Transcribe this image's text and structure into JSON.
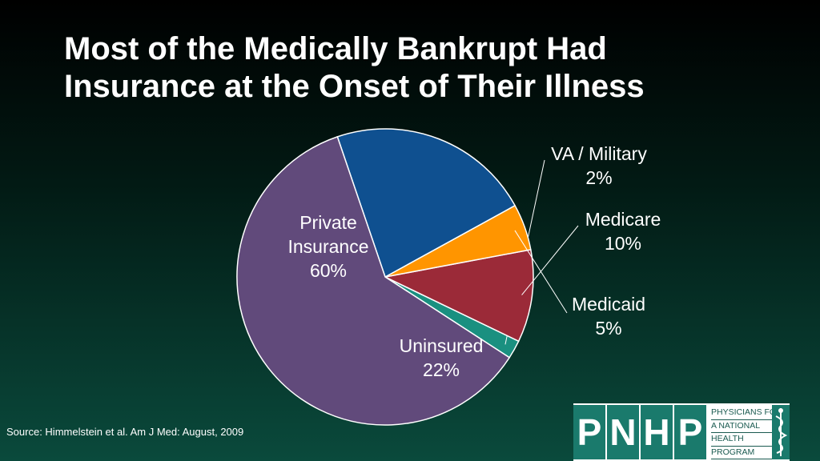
{
  "title": {
    "line1": "Most of the Medically Bankrupt Had",
    "line2": "Insurance at the Onset of Their Illness"
  },
  "chart_data": {
    "type": "pie",
    "title": "Most of the Medically Bankrupt Had Insurance at the Onset of Their Illness",
    "slices": [
      {
        "name": "VA / Military",
        "value": 2,
        "label_lines": [
          "VA / Military",
          "2%"
        ],
        "color": "#1a9080",
        "label_inside": false
      },
      {
        "name": "Medicare",
        "value": 10,
        "label_lines": [
          "Medicare",
          "10%"
        ],
        "color": "#9b2a38",
        "label_inside": false
      },
      {
        "name": "Medicaid",
        "value": 5,
        "label_lines": [
          "Medicaid",
          "5%"
        ],
        "color": "#ff9500",
        "label_inside": false
      },
      {
        "name": "Uninsured",
        "value": 22,
        "label_lines": [
          "Uninsured",
          "22%"
        ],
        "color": "#0f5090",
        "label_inside": true
      },
      {
        "name": "Private Insurance",
        "value": 60,
        "label_lines": [
          "Private",
          "Insurance",
          "60%"
        ],
        "color": "#614a7b",
        "label_inside": true
      }
    ]
  },
  "source": "Source: Himmelstein et al. Am J Med: August, 2009",
  "logo": {
    "letters": [
      "P",
      "N",
      "H",
      "P"
    ],
    "words": [
      "PHYSICIANS FOR",
      "A NATIONAL",
      "HEALTH",
      "PROGRAM"
    ]
  }
}
